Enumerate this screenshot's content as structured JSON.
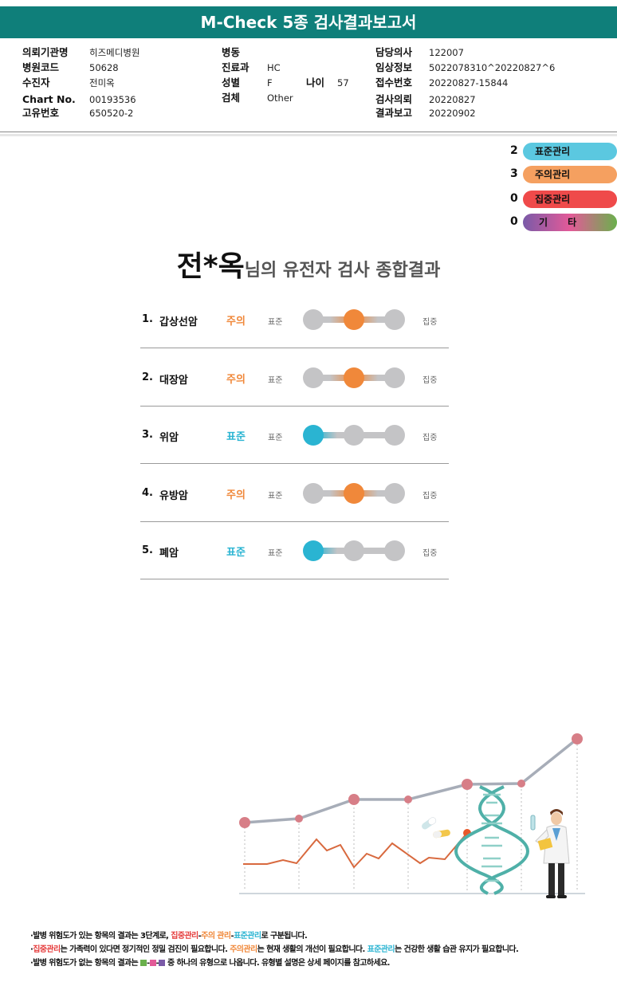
{
  "report": {
    "title": "M-Check 5종 검사결과보고서"
  },
  "info": {
    "left": [
      {
        "label": "의뢰기관명",
        "value": "히즈메디병원"
      },
      {
        "label": "병원코드",
        "value": "50628"
      },
      {
        "label": "수진자",
        "value": "전미옥"
      },
      {
        "label": "Chart No.",
        "value": "00193536"
      },
      {
        "label": "고유번호",
        "value": "650520-2"
      }
    ],
    "middle": [
      {
        "label": "병동",
        "value": ""
      },
      {
        "label": "진료과",
        "value": "HC"
      },
      {
        "label": "성별",
        "value": "F"
      },
      {
        "label": "검체",
        "value": "Other"
      }
    ],
    "age": {
      "label": "나이",
      "value": "57"
    },
    "right": [
      {
        "label": "담당의사",
        "value": "122007"
      },
      {
        "label": "임상정보",
        "value": "5022078310^20220827^6"
      },
      {
        "label": "접수번호",
        "value": "20220827-15844"
      },
      {
        "label": "검사의뢰",
        "value": "20220827"
      },
      {
        "label": "결과보고",
        "value": "20220902"
      }
    ]
  },
  "legend": [
    {
      "count": "2",
      "label": "표준관리",
      "color": "#5bc8e0"
    },
    {
      "count": "3",
      "label": "주의관리",
      "color": "#f5a060"
    },
    {
      "count": "0",
      "label": "집중관리",
      "color": "#ef4a4a"
    },
    {
      "count": "0",
      "label": "기      타",
      "colors": [
        "#7a5aa8",
        "#e35a98",
        "#6ab04c"
      ]
    }
  ],
  "summary": {
    "name": "전*옥",
    "suffix": "님의 유전자 검사 종합결과"
  },
  "results": [
    {
      "num": "1.",
      "name": "갑상선암",
      "status": "주의",
      "level": 2
    },
    {
      "num": "2.",
      "name": "대장암",
      "status": "주의",
      "level": 2
    },
    {
      "num": "3.",
      "name": "위암",
      "status": "표준",
      "level": 1
    },
    {
      "num": "4.",
      "name": "유방암",
      "status": "주의",
      "level": 2
    },
    {
      "num": "5.",
      "name": "폐암",
      "status": "표준",
      "level": 1
    }
  ],
  "scale": {
    "low": "표준",
    "high": "집중"
  },
  "colors": {
    "standard": "#2ab4d2",
    "caution": "#f0883a",
    "focus": "#e53c3c",
    "inactive": "#c4c4c6",
    "header": "#0f7f7a"
  },
  "notes": {
    "line1_a": "·발병 위험도가 있는 항목의 결과는 3단계로, ",
    "line1_b": "집중관리",
    "line1_c": "-",
    "line1_d": "주의 관리",
    "line1_e": "-",
    "line1_f": "표준관리",
    "line1_g": "로 구분됩니다.",
    "line2_a": "·",
    "line2_b": "집중관리",
    "line2_c": "는 가족력이 있다면 정기적인 정밀 검진이 필요합니다. ",
    "line2_d": "주의관리",
    "line2_e": "는 현재 생활의 개선이 필요합니다. ",
    "line2_f": "표준관리",
    "line2_g": "는 건강한 생활 습관 유지가 필요합니다.",
    "line3_a": "·발병 위험도가 없는 항목의 결과는 ",
    "line3_b": " 중 하나의 유형으로 나옵니다. 유형별 설명은 상세 페이지를 참고하세요."
  }
}
